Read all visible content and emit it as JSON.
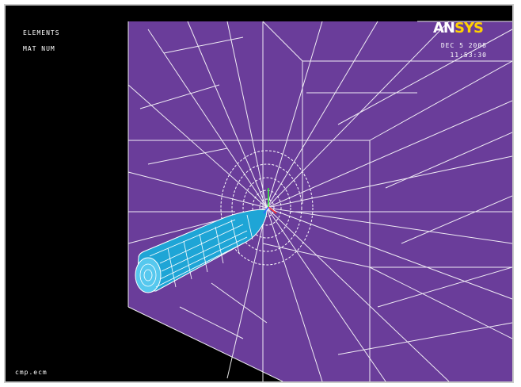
{
  "window": {
    "top_left_lines": [
      "ELEMENTS",
      "MAT  NUM"
    ],
    "bottom_left_text": "cmp.ecm"
  },
  "logo": {
    "prefix": "AN",
    "suffix": "SYS"
  },
  "timestamp": {
    "date": "DEC  5 2008",
    "time": "11:53:30"
  },
  "colors": {
    "background": "#000000",
    "material": "#6a3d9a",
    "mesh": "#ffffff",
    "probe": "#1ea5d6",
    "logo_accent": "#ffd200",
    "triad_x": "#ff3030",
    "triad_y": "#30ff30",
    "triad_z": "#3060ff"
  }
}
